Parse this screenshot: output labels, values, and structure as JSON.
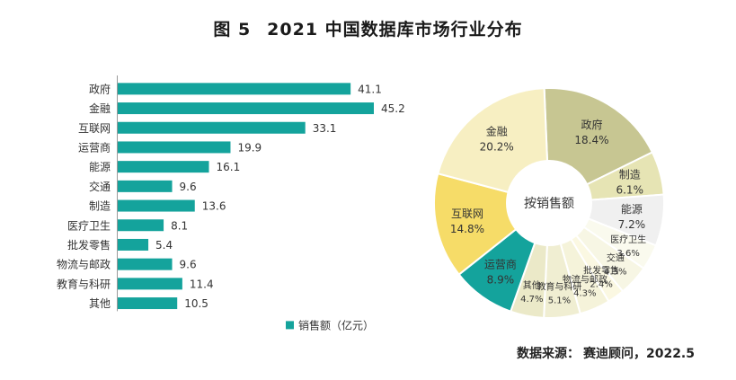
{
  "title": {
    "figure_no": "图 5",
    "text": "2021 中国数据库市场行业分布"
  },
  "source": {
    "label": "数据来源：",
    "value": "赛迪顾问，2022.5"
  },
  "colors": {
    "bar": "#14a39c"
  },
  "chart_data": [
    {
      "type": "bar",
      "orientation": "horizontal",
      "categories": [
        "政府",
        "金融",
        "互联网",
        "运营商",
        "能源",
        "交通",
        "制造",
        "医疗卫生",
        "批发零售",
        "物流与邮政",
        "教育与科研",
        "其他"
      ],
      "series": [
        {
          "name": "销售额（亿元）",
          "values": [
            41.1,
            45.2,
            33.1,
            19.9,
            16.1,
            9.6,
            13.6,
            8.1,
            5.4,
            9.6,
            11.4,
            10.5
          ]
        }
      ],
      "value_labels": [
        "41.1",
        "45.2",
        "33.1",
        "19.9",
        "16.1",
        "9.6",
        "13.6",
        "8.1",
        "5.4",
        "9.6",
        "11.4",
        "10.5"
      ],
      "legend": "bottom",
      "grid": false
    },
    {
      "type": "pie",
      "center_label": "按销售额",
      "slices": [
        {
          "label": "政府",
          "pct_text": "18.4%",
          "value": 18.4,
          "color": "#c7c692"
        },
        {
          "label": "制造",
          "pct_text": "6.1%",
          "value": 6.1,
          "color": "#e6e4b4"
        },
        {
          "label": "能源",
          "pct_text": "7.2%",
          "value": 7.2,
          "color": "#f0f0f0"
        },
        {
          "label": "医疗卫生",
          "pct_text": "3.6%",
          "value": 3.6,
          "color": "#fafaee"
        },
        {
          "label": "交通",
          "pct_text": "4.3%",
          "value": 4.3,
          "color": "#f7f6e4"
        },
        {
          "label": "批发零售",
          "pct_text": "2.4%",
          "value": 2.4,
          "color": "#fbf8e2"
        },
        {
          "label": "物流与邮政",
          "pct_text": "4.3%",
          "value": 4.3,
          "color": "#f5f3da"
        },
        {
          "label": "教育与科研",
          "pct_text": "5.1%",
          "value": 5.1,
          "color": "#f0eed2"
        },
        {
          "label": "其他",
          "pct_text": "4.7%",
          "value": 4.7,
          "color": "#ebe9c8"
        },
        {
          "label": "运营商",
          "pct_text": "8.9%",
          "value": 8.9,
          "color": "#14a39c"
        },
        {
          "label": "互联网",
          "pct_text": "14.8%",
          "value": 14.8,
          "color": "#f6dc68"
        },
        {
          "label": "金融",
          "pct_text": "20.2%",
          "value": 20.2,
          "color": "#f7efc2"
        }
      ]
    }
  ]
}
